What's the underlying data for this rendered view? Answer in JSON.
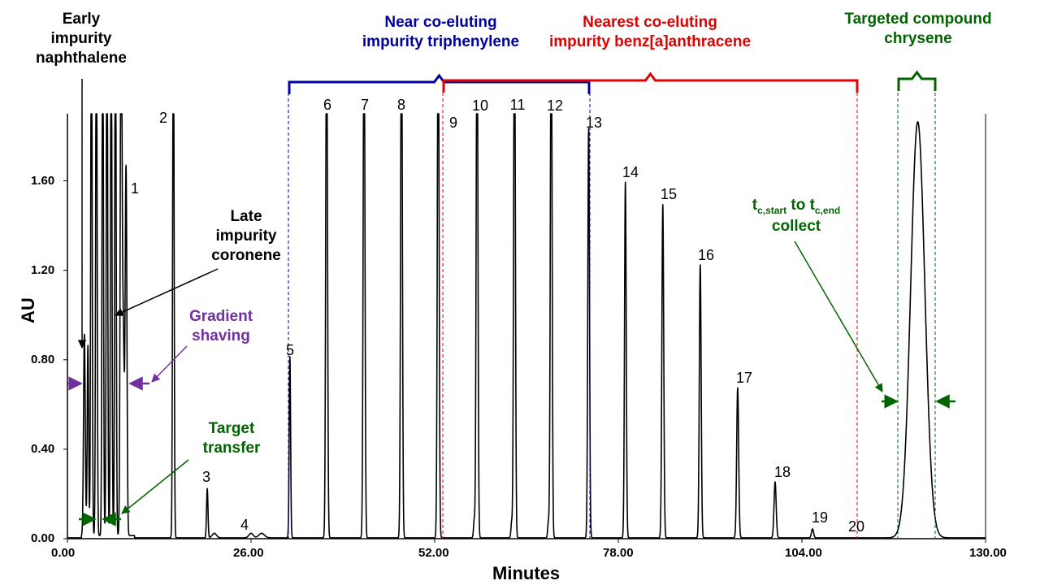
{
  "chart_data": {
    "type": "line",
    "xlabel": "Minutes",
    "ylabel": "AU",
    "xlim": [
      0,
      130
    ],
    "ylim": [
      0,
      1.9
    ],
    "x_ticks": [
      "0.00",
      "26.00",
      "52.00",
      "78.00",
      "104.00",
      "130.00"
    ],
    "y_ticks": [
      "0.00",
      "0.40",
      "0.80",
      "1.20",
      "1.60"
    ],
    "peaks": [
      {
        "label": "1",
        "x": 8.3,
        "height": 1.63
      },
      {
        "label": "2",
        "x": 15.0,
        "height": 1.84
      },
      {
        "label": "3",
        "x": 19.8,
        "height": 0.22
      },
      {
        "label": "4",
        "x": 26.0,
        "height": 0.02
      },
      {
        "label": "5",
        "x": 31.5,
        "height": 0.81
      },
      {
        "label": "6",
        "x": 36.7,
        "height": 1.9
      },
      {
        "label": "7",
        "x": 42.0,
        "height": 1.9
      },
      {
        "label": "8",
        "x": 47.3,
        "height": 1.9
      },
      {
        "label": "9",
        "x": 52.5,
        "height": 1.9
      },
      {
        "label": "10",
        "x": 58.0,
        "height": 1.9
      },
      {
        "label": "11",
        "x": 63.3,
        "height": 1.9
      },
      {
        "label": "12",
        "x": 68.5,
        "height": 1.9
      },
      {
        "label": "13",
        "x": 73.8,
        "height": 1.83
      },
      {
        "label": "14",
        "x": 79.0,
        "height": 1.59
      },
      {
        "label": "15",
        "x": 84.3,
        "height": 1.49
      },
      {
        "label": "16",
        "x": 89.6,
        "height": 1.22
      },
      {
        "label": "17",
        "x": 94.9,
        "height": 0.67
      },
      {
        "label": "18",
        "x": 100.2,
        "height": 0.25
      },
      {
        "label": "19",
        "x": 105.5,
        "height": 0.04
      },
      {
        "label": "20",
        "x": 110.8,
        "height": 0.0
      },
      {
        "label": "",
        "x": 120.4,
        "height": 1.86
      }
    ],
    "annotations": {
      "early_impurity": "Early\nimpurity\nnaphthalene",
      "late_impurity": "Late\nimpurity\ncoronene",
      "gradient_shaving": "Gradient\nshaving",
      "target_transfer": "Target\ntransfer",
      "near_coeluting": "Near co-eluting\nimpurity triphenylene",
      "nearest_coeluting": "Nearest co-eluting\nimpurity benz[a]anthracene",
      "targeted_compound": "Targeted compound\nchrysene",
      "collect_prefix": "t",
      "collect_start_sub": "c,start",
      "collect_to": " to t",
      "collect_end_sub": "c,end",
      "collect_word": "collect"
    },
    "colors": {
      "trace": "#000000",
      "blue": "#0000a0",
      "red": "#e00000",
      "green": "#006400",
      "purple": "#7030a0"
    }
  }
}
